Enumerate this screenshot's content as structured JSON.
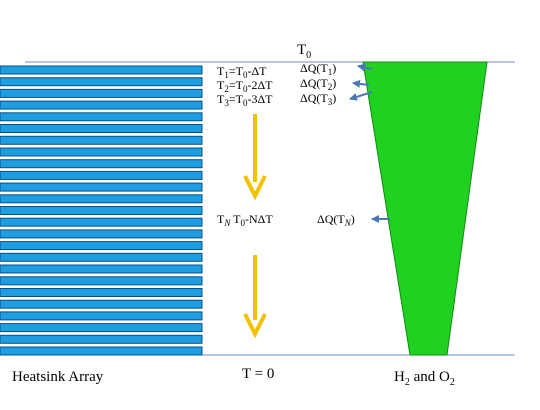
{
  "top_label": "T",
  "top_label_sub": "0",
  "bottom_center_label": "T = 0",
  "left_caption": "Heatsink Array",
  "right_caption": {
    "a": "H",
    "a_sub": "2",
    "mid": " and O",
    "b_sub": "2"
  },
  "rows": [
    {
      "t": "T",
      "t_sub": "1",
      "expr": "=T",
      "expr_sub": "0",
      "expr_tail": "-ΔT",
      "dq": "ΔQ(T",
      "dq_sub": "1",
      "dq_close": ")"
    },
    {
      "t": "T",
      "t_sub": "2",
      "expr": "=T",
      "expr_sub": "0",
      "expr_tail": "-2ΔT",
      "dq": "ΔQ(T",
      "dq_sub": "2",
      "dq_close": ")"
    },
    {
      "t": "T",
      "t_sub": "3",
      "expr": "=T",
      "expr_sub": "0",
      "expr_tail": "-3ΔT",
      "dq": "ΔQ(T",
      "dq_sub": "3",
      "dq_close": ")"
    },
    {
      "t": "T",
      "t_sub": "N",
      "expr": " T",
      "expr_sub": "0",
      "expr_tail": "-NΔT",
      "dq": "ΔQ(T",
      "dq_sub": "N",
      "dq_close": ")"
    }
  ],
  "colors": {
    "plate_fill": "#1e9ee2",
    "plate_stroke": "#0a4f86",
    "funnel": "#1fd21f",
    "down_arrow": "#f2c200",
    "heat_arrow": "#4b78b8",
    "guide_line": "#6d8fc6"
  },
  "icons": {
    "down_arrow": "arrow-down-icon",
    "heat_arrow": "arrow-left-icon"
  }
}
